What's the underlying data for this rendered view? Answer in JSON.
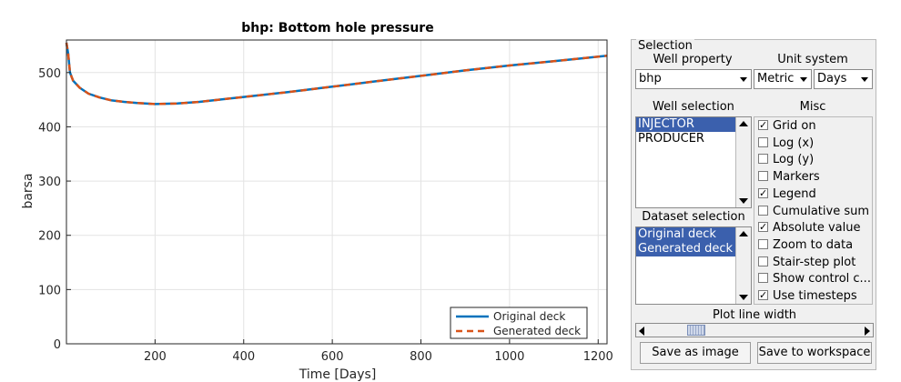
{
  "chart_data": {
    "type": "line",
    "title": "bhp: Bottom hole pressure",
    "xlabel": "Time [Days]",
    "ylabel": "barsa",
    "xlim": [
      0,
      1220
    ],
    "ylim": [
      0,
      560
    ],
    "xticks": [
      200,
      400,
      600,
      800,
      1000,
      1200
    ],
    "yticks": [
      0,
      100,
      200,
      300,
      400,
      500
    ],
    "grid": true,
    "legend_position": "bottom-right",
    "series": [
      {
        "name": "Original deck",
        "color": "#0072bd",
        "style": "solid",
        "x": [
          0,
          4,
          8,
          15,
          30,
          50,
          75,
          100,
          130,
          160,
          200,
          250,
          300,
          400,
          500,
          600,
          700,
          800,
          900,
          1000,
          1100,
          1220
        ],
        "y": [
          555,
          535,
          500,
          485,
          472,
          461,
          454,
          449,
          446,
          444,
          442,
          443,
          446,
          455,
          464,
          474,
          484,
          494,
          504,
          513,
          521,
          531
        ]
      },
      {
        "name": "Generated deck",
        "color": "#d95319",
        "style": "dashed",
        "x": [
          0,
          4,
          8,
          15,
          30,
          50,
          75,
          100,
          130,
          160,
          200,
          250,
          300,
          400,
          500,
          600,
          700,
          800,
          900,
          1000,
          1100,
          1220
        ],
        "y": [
          555,
          535,
          500,
          485,
          472,
          461,
          454,
          449,
          446,
          444,
          442,
          443,
          446,
          455,
          464,
          474,
          484,
          494,
          504,
          513,
          521,
          531
        ]
      }
    ]
  },
  "panel": {
    "title": "Selection",
    "well_property_label": "Well property",
    "well_property_value": "bhp",
    "unit_system_label": "Unit system",
    "unit_value": "Metric",
    "time_unit_value": "Days",
    "well_selection_label": "Well selection",
    "wells": [
      {
        "label": "INJECTOR",
        "selected": true
      },
      {
        "label": "PRODUCER",
        "selected": false
      }
    ],
    "misc_label": "Misc",
    "misc": [
      {
        "label": "Grid on",
        "checked": true
      },
      {
        "label": "Log (x)",
        "checked": false
      },
      {
        "label": "Log (y)",
        "checked": false
      },
      {
        "label": "Markers",
        "checked": false
      },
      {
        "label": "Legend",
        "checked": true
      },
      {
        "label": "Cumulative sum",
        "checked": false
      },
      {
        "label": "Absolute value",
        "checked": true
      },
      {
        "label": "Zoom to data",
        "checked": false
      },
      {
        "label": "Stair-step plot",
        "checked": false
      },
      {
        "label": "Show control c...",
        "checked": false
      },
      {
        "label": "Use timesteps",
        "checked": true
      }
    ],
    "dataset_selection_label": "Dataset selection",
    "datasets": [
      {
        "label": "Original deck",
        "selected": true
      },
      {
        "label": "Generated deck",
        "selected": true
      }
    ],
    "line_width_label": "Plot line width",
    "save_image_label": "Save as image",
    "save_workspace_label": "Save to workspace"
  }
}
